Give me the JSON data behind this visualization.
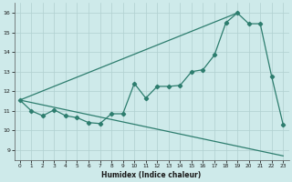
{
  "line1_x": [
    0,
    19
  ],
  "line1_y": [
    11.55,
    16.0
  ],
  "line2_x": [
    0,
    1,
    2,
    3,
    4,
    5,
    6,
    7,
    8,
    9,
    10,
    11,
    12,
    13,
    14,
    15,
    16,
    17,
    18,
    19,
    20,
    21,
    22,
    23
  ],
  "line2_y": [
    11.55,
    11.0,
    10.75,
    11.05,
    10.75,
    10.65,
    10.4,
    10.35,
    10.85,
    10.85,
    12.4,
    11.65,
    12.25,
    12.25,
    12.3,
    13.0,
    13.1,
    13.85,
    15.5,
    16.0,
    15.45,
    15.45,
    12.75,
    10.3
  ],
  "line3_x": [
    0,
    23
  ],
  "line3_y": [
    11.55,
    8.7
  ],
  "line_color": "#2d7d6e",
  "bg_color": "#ceeaea",
  "grid_color": "#b0d0d0",
  "xlabel": "Humidex (Indice chaleur)",
  "xlim": [
    -0.5,
    23.5
  ],
  "ylim": [
    8.5,
    16.5
  ],
  "yticks": [
    9,
    10,
    11,
    12,
    13,
    14,
    15,
    16
  ],
  "xticks": [
    0,
    1,
    2,
    3,
    4,
    5,
    6,
    7,
    8,
    9,
    10,
    11,
    12,
    13,
    14,
    15,
    16,
    17,
    18,
    19,
    20,
    21,
    22,
    23
  ],
  "marker": "D",
  "markersize": 2.2,
  "linewidth": 0.9
}
